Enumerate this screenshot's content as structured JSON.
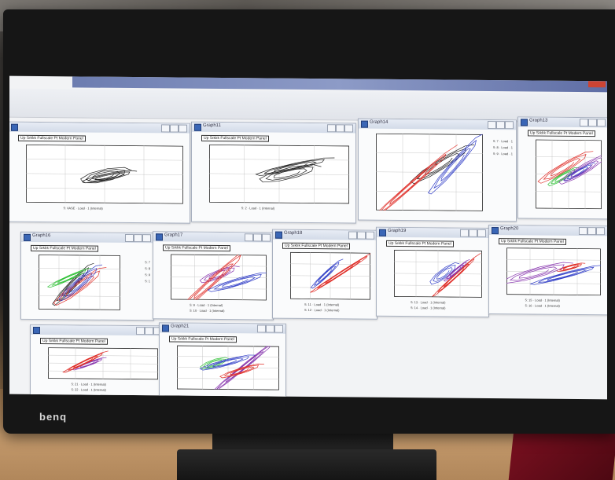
{
  "monitor": {
    "brand": "benq"
  },
  "graphs": [
    {
      "title": "",
      "header": "Up Sıklık Fullscale Pt Modern Panel",
      "legend": [
        "5: VASE · Load · 1 (Internal)"
      ]
    },
    {
      "title": "Graph11",
      "header": "Up Sıklık Fullscale Pt Modern Panel",
      "legend": [
        "5: 2 · Load · 1 (Internal)"
      ]
    },
    {
      "title": "Graph14",
      "header": "",
      "legend": [
        "5: 7 · Load · 1",
        "5: 8 · Load · 1",
        "5: 9 · Load · 1"
      ]
    },
    {
      "title": "Graph13",
      "header": "Up Sıklık Fullscale Pt Modern Panel",
      "legend": []
    },
    {
      "title": "Graph16",
      "header": "Up Sıklık Fullscale Pt Modern Panel",
      "legend": [
        "5: 7",
        "5: 8",
        "5: 9",
        "5: 1"
      ]
    },
    {
      "title": "Graph17",
      "header": "Up Sıklık Fullscale Pt Modern Panel",
      "legend": [
        "5: 9 · Load · 1 (Internal)",
        "5: 10 · Load · 1 (Internal)"
      ]
    },
    {
      "title": "Graph18",
      "header": "Up Sıklık Fullscale Pt Modern Panel",
      "legend": [
        "5: 11 · Load · 1 (Internal)",
        "5: 12 · Load · 1 (Internal)"
      ]
    },
    {
      "title": "Graph19",
      "header": "Up Sıklık Fullscale Pt Modern Panel",
      "legend": [
        "5: 13 · Load · 1 (Internal)",
        "5: 14 · Load · 1 (Internal)"
      ]
    },
    {
      "title": "Graph20",
      "header": "Up Sıklık Fullscale Pt Modern Panel",
      "legend": [
        "5: 15 · Load · 1 (Internal)",
        "5: 16 · Load · 1 (Internal)"
      ]
    },
    {
      "title": "",
      "header": "Up Sıklık Fullscale Pt Modern Panel",
      "legend": [
        "5: 21 · Load · 1 (Internal)",
        "5: 22 · Load · 1 (Internal)"
      ]
    },
    {
      "title": "Graph21",
      "header": "Up Sıklık Fullscale Pt Modern Panel",
      "legend": []
    }
  ],
  "colors": {
    "black": "#222222",
    "red": "#e0302a",
    "blue": "#3340c8",
    "green": "#33c23a",
    "purple": "#8a3ab0"
  }
}
